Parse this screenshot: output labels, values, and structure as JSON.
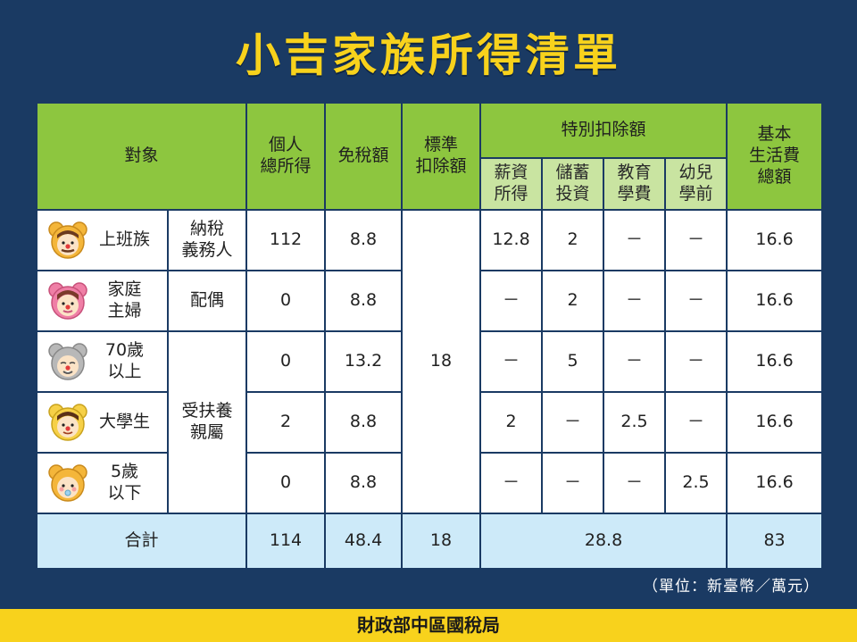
{
  "title": "小吉家族所得清單",
  "headers": {
    "target": "對象",
    "income_l1": "個人",
    "income_l2": "總所得",
    "exemption": "免稅額",
    "standard_l1": "標準",
    "standard_l2": "扣除額",
    "special": "特別扣除額",
    "special_sub": [
      {
        "l1": "薪資",
        "l2": "所得"
      },
      {
        "l1": "儲蓄",
        "l2": "投資"
      },
      {
        "l1": "教育",
        "l2": "學費"
      },
      {
        "l1": "幼兒",
        "l2": "學前"
      }
    ],
    "basic_l1": "基本",
    "basic_l2": "生活費",
    "basic_l3": "總額"
  },
  "roles": {
    "taxpayer_l1": "納稅",
    "taxpayer_l2": "義務人",
    "spouse": "配偶",
    "dependent_l1": "受扶養",
    "dependent_l2": "親屬"
  },
  "standard_deduction": "18",
  "rows": [
    {
      "l1": "上班族",
      "l2": "",
      "income": "112",
      "exemption": "8.8",
      "salary": "12.8",
      "savings": "2",
      "education": "－",
      "preschool": "－",
      "basic": "16.6",
      "face": "#f4b63a"
    },
    {
      "l1": "家庭",
      "l2": "主婦",
      "income": "0",
      "exemption": "8.8",
      "salary": "－",
      "savings": "2",
      "education": "－",
      "preschool": "－",
      "basic": "16.6",
      "face": "#ef7fa6"
    },
    {
      "l1": "70歲",
      "l2": "以上",
      "income": "0",
      "exemption": "13.2",
      "salary": "－",
      "savings": "5",
      "education": "－",
      "preschool": "－",
      "basic": "16.6",
      "face": "#b8b8b8"
    },
    {
      "l1": "大學生",
      "l2": "",
      "income": "2",
      "exemption": "8.8",
      "salary": "2",
      "savings": "－",
      "education": "2.5",
      "preschool": "－",
      "basic": "16.6",
      "face": "#f6d047"
    },
    {
      "l1": "5歲",
      "l2": "以下",
      "income": "0",
      "exemption": "8.8",
      "salary": "－",
      "savings": "－",
      "education": "－",
      "preschool": "2.5",
      "basic": "16.6",
      "face": "#f4b63a"
    }
  ],
  "total": {
    "label": "合計",
    "income": "114",
    "exemption": "48.4",
    "standard": "18",
    "special": "28.8",
    "basic": "83"
  },
  "unit_note": "（單位：新臺幣／萬元）",
  "footer": "財政部中區國稅局"
}
